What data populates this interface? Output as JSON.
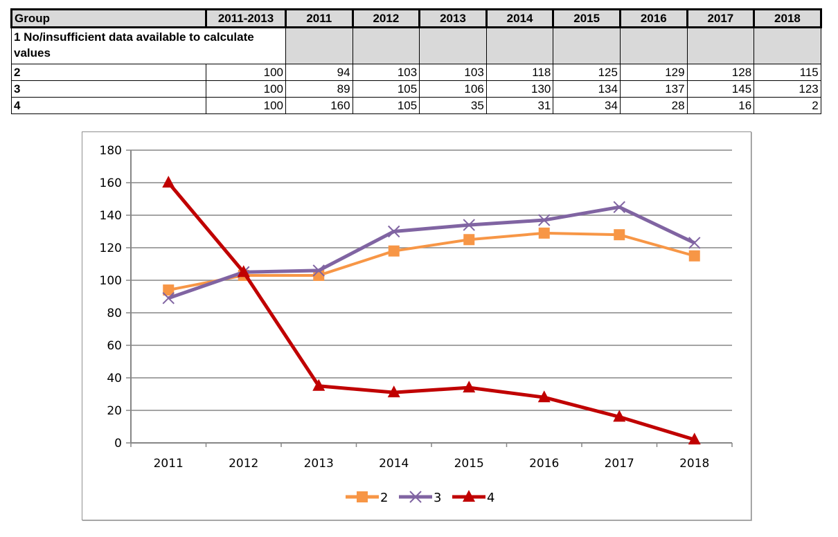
{
  "table": {
    "headers": [
      "Group",
      "2011-2013",
      "2011",
      "2012",
      "2013",
      "2014",
      "2015",
      "2016",
      "2017",
      "2018"
    ],
    "note_row": "1 No/insufficient data available to calculate values",
    "rows": [
      {
        "group": "2",
        "values": [
          "100",
          "94",
          "103",
          "103",
          "118",
          "125",
          "129",
          "128",
          "115"
        ]
      },
      {
        "group": "3",
        "values": [
          "100",
          "89",
          "105",
          "106",
          "130",
          "134",
          "137",
          "145",
          "123"
        ]
      },
      {
        "group": "4",
        "values": [
          "100",
          "160",
          "105",
          "35",
          "31",
          "34",
          "28",
          "16",
          "2"
        ]
      }
    ]
  },
  "chart_data": {
    "type": "line",
    "title": "",
    "xlabel": "",
    "ylabel": "",
    "categories": [
      "2011",
      "2012",
      "2013",
      "2014",
      "2015",
      "2016",
      "2017",
      "2018"
    ],
    "ylim": [
      0,
      180
    ],
    "yticks": [
      "0",
      "20",
      "40",
      "60",
      "80",
      "100",
      "120",
      "140",
      "160",
      "180"
    ],
    "grid": true,
    "legend_position": "bottom",
    "series": [
      {
        "name": "2",
        "marker": "square",
        "color": "#f79646",
        "values": [
          94,
          103,
          103,
          118,
          125,
          129,
          128,
          115
        ]
      },
      {
        "name": "3",
        "marker": "x",
        "color": "#8064a2",
        "values": [
          89,
          105,
          106,
          130,
          134,
          137,
          145,
          123
        ]
      },
      {
        "name": "4",
        "marker": "triangle",
        "color": "#c00000",
        "values": [
          160,
          105,
          35,
          31,
          34,
          28,
          16,
          2
        ]
      }
    ]
  }
}
